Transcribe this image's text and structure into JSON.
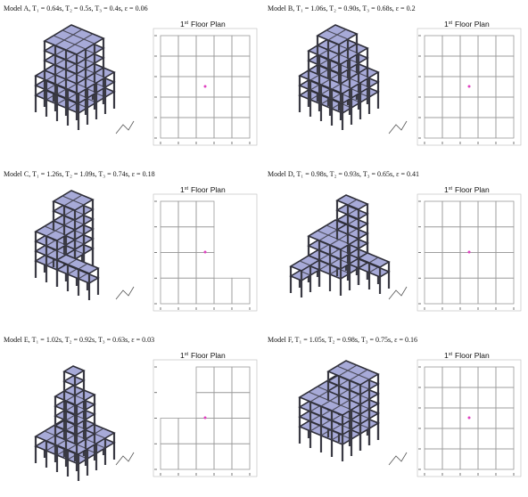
{
  "plan_title": {
    "ordinal": "1",
    "suffix": "st",
    "text": "Floor Plan"
  },
  "models": [
    {
      "caption": "Model A, T₁ = 0.64s, T₂ = 0.5s, T₃ = 0.4s, ε = 0.06"
    },
    {
      "caption": "Model B, T₁ = 1.06s, T₂ = 0.90s, T₃ = 0.68s, ε = 0.2"
    },
    {
      "caption": "Model C, T₁ = 1.26s, T₂ = 1.09s, T₃ = 0.74s, ε = 0.18"
    },
    {
      "caption": "Model D, T₁ = 0.98s, T₂ = 0.93s, T₃ = 0.65s, ε = 0.41"
    },
    {
      "caption": "Model E, T₁ = 1.02s, T₂ = 0.92s, T₃ = 0.63s, ε = 0.03"
    },
    {
      "caption": "Model F, T₁ = 1.05s, T₂ = 0.98s, T₃ = 0.75s, ε = 0.16"
    }
  ]
}
